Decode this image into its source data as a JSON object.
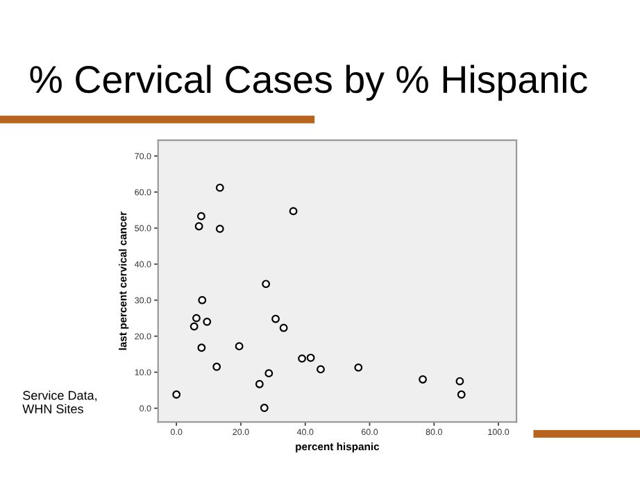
{
  "chart_data": {
    "type": "scatter",
    "title": "% Cervical Cases by % Hispanic",
    "xlabel": "percent hispanic",
    "ylabel": "last percent cervical cancer",
    "annotations": [
      "Service Data,\nWHN Sites"
    ],
    "x": [
      0,
      5.5,
      6.2,
      7,
      7.7,
      7.8,
      8,
      9.5,
      12.5,
      13.5,
      13.5,
      19.5,
      25.8,
      27.3,
      27.8,
      28.7,
      30.8,
      33.3,
      36.3,
      39,
      41.7,
      44.8,
      56.5,
      76.5,
      88,
      88.5
    ],
    "series": [
      {
        "color": "#000000",
        "values": [
          3.8,
          22.7,
          25,
          50.5,
          53.3,
          16.8,
          30,
          24,
          11.5,
          61.2,
          49.8,
          17.2,
          6.7,
          0.1,
          34.5,
          9.7,
          24.8,
          22.3,
          54.7,
          13.8,
          14,
          10.8,
          11.3,
          8,
          7.5,
          3.8
        ]
      }
    ],
    "marker": "circle",
    "grid": false,
    "legend": false,
    "xlim": [
      -5.7,
      105.6
    ],
    "ylim": [
      -3.8,
      74.4
    ],
    "xticks": [
      {
        "value": 0,
        "label": "0.0"
      },
      {
        "value": 20,
        "label": "20.0"
      },
      {
        "value": 40,
        "label": "40.0"
      },
      {
        "value": 60,
        "label": "60.0"
      },
      {
        "value": 80,
        "label": "80.0"
      },
      {
        "value": 100,
        "label": "100.0"
      }
    ],
    "yticks": [
      {
        "value": 0,
        "label": "0.0"
      },
      {
        "value": 10,
        "label": "10.0"
      },
      {
        "value": 20,
        "label": "20.0"
      },
      {
        "value": 30,
        "label": "30.0"
      },
      {
        "value": 40,
        "label": "40.0"
      },
      {
        "value": 50,
        "label": "50.0"
      },
      {
        "value": 60,
        "label": "60.0"
      },
      {
        "value": 70,
        "label": "70.0"
      }
    ]
  }
}
